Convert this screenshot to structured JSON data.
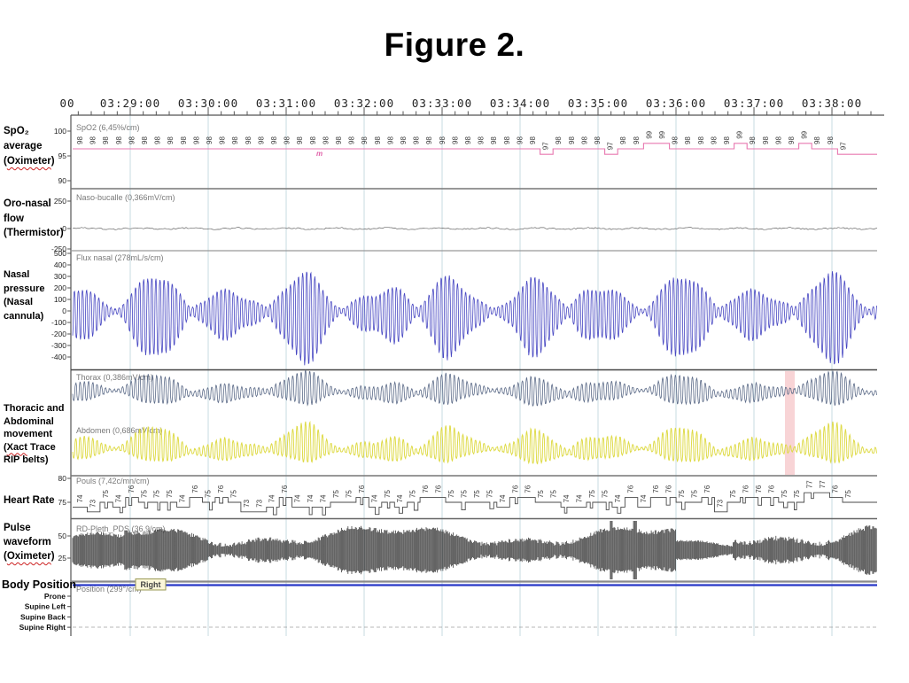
{
  "title": "Figure 2.",
  "figure": {
    "time_axis": {
      "partial_first_label": "00",
      "labels": [
        "03:29:00",
        "03:30:00",
        "03:31:00",
        "03:32:00",
        "03:33:00",
        "03:34:00",
        "03:35:00",
        "03:36:00",
        "03:37:00",
        "03:38:00"
      ],
      "minor_tick_interval_seconds": 10
    },
    "row_labels": [
      [
        "SpO₂",
        "average",
        "(Oximeter)"
      ],
      [
        "Oro-nasal",
        "flow",
        "(Thermistor)"
      ],
      [
        "Nasal",
        "pressure",
        "(Nasal",
        "cannula)"
      ],
      [
        "Thoracic and",
        "Abdominal",
        "movement",
        "(Xact Trace",
        "RIP belts)"
      ],
      [
        "Heart Rate"
      ],
      [
        "Pulse",
        "waveform",
        "(Oximeter)"
      ],
      [
        "Body Position"
      ]
    ],
    "spellcheck_wavy_words": [
      "Oximeter",
      "Xact"
    ],
    "position_scale_labels": [
      "Prone",
      "Supine Left",
      "Supine Back",
      "Supine Right"
    ],
    "body_position_value": "Right"
  },
  "chart_data": {
    "type": "multichannel-timeseries (polysomnography)",
    "x_tick_labels": [
      "03:29:00",
      "03:30:00",
      "03:31:00",
      "03:32:00",
      "03:33:00",
      "03:34:00",
      "03:35:00",
      "03:36:00",
      "03:37:00",
      "03:38:00"
    ],
    "channels": [
      {
        "id": "spo2",
        "name": "SpO2 average (Oximeter)",
        "signal_label": "SpO2 (6,45%/cm)",
        "y_ticks": [
          "100",
          "95",
          "90"
        ],
        "values_every_10s": [
          98,
          98,
          98,
          98,
          98,
          98,
          98,
          98,
          98,
          98,
          98,
          98,
          98,
          98,
          98,
          98,
          98,
          98,
          98,
          98,
          98,
          98,
          98,
          98,
          98,
          98,
          98,
          98,
          98,
          98,
          98,
          98,
          98,
          98,
          98,
          98,
          97,
          98,
          98,
          98,
          98,
          97,
          98,
          98,
          99,
          99,
          98,
          98,
          98,
          98,
          98,
          99,
          98,
          98,
          98,
          98,
          99,
          98,
          98,
          97
        ],
        "color": "#e878b0",
        "value_label_color": "#3a3a3a",
        "pattern": "step line of averaged SpO2 values, each value printed rotated above the trace"
      },
      {
        "id": "oronasal",
        "name": "Oro-nasal flow (Thermistor)",
        "signal_label": "Naso-bucalle (0,366mV/cm)",
        "y_ticks": [
          "250",
          "0",
          "-250"
        ],
        "color": "#666666",
        "pattern": "essentially flat line at 0 with minimal noise (absent thermistor flow)"
      },
      {
        "id": "nasal",
        "name": "Nasal pressure (Nasal cannula)",
        "signal_label": "Flux nasal (278mL/s/cm)",
        "y_ticks": [
          "500",
          "400",
          "300",
          "200",
          "100",
          "0",
          "-100",
          "-200",
          "-300",
          "-400"
        ],
        "color": "#4747c2",
        "pattern": "crescendo-decrescendo bursts (periodic breathing); peaks about +300 / -430, burst period about 1 minute"
      },
      {
        "id": "thorax",
        "name": "Thoracic movement (Xact Trace RIP belt)",
        "signal_label": "Thorax (0,386mV/cm)",
        "y_ticks": [],
        "color": "#5c6b88",
        "pattern": "respiratory oscillation with same waxing-waning burst envelope"
      },
      {
        "id": "abdomen",
        "name": "Abdominal movement (Xact Trace RIP belt)",
        "signal_label": "Abdomen (0,686mV/cm)",
        "y_ticks": [],
        "color": "#deda45",
        "pattern": "respiratory oscillation, upward spikes, same burst envelope"
      },
      {
        "id": "pouls",
        "name": "Heart Rate",
        "signal_label": "Pouls (7,42c/mn/cm)",
        "y_ticks": [
          "80",
          "75"
        ],
        "values_every_10s": [
          74,
          73,
          75,
          74,
          76,
          75,
          75,
          75,
          74,
          76,
          75,
          76,
          75,
          73,
          73,
          74,
          76,
          74,
          74,
          74,
          75,
          75,
          76,
          74,
          75,
          74,
          75,
          76,
          76,
          75,
          75,
          75,
          75,
          74,
          76,
          76,
          75,
          75,
          74,
          74,
          75,
          75,
          74,
          76,
          74,
          76,
          76,
          75,
          75,
          76,
          73,
          75,
          76,
          76,
          76,
          75,
          75,
          77,
          77,
          76,
          75
        ],
        "color": "#4a4a4a",
        "value_label_color": "#3a3a3a",
        "pattern": "stepped pulse-rate trace with rotated value labels"
      },
      {
        "id": "pleth",
        "name": "Pulse waveform (Oximeter)",
        "signal_label": "RD-Pleth_PDS (36,9/cm)",
        "y_ticks": [
          "50",
          "25"
        ],
        "color": "#383838",
        "pattern": "dense plethysmograph waveform, slowly varying amplitude, quiet segment near 03:36:40-03:37:20 and two tall spikes near 03:35:10"
      },
      {
        "id": "position",
        "name": "Body Position",
        "signal_label": "Position (299°/cm)",
        "value": "Right",
        "scale_labels": [
          "Prone",
          "Supine Left",
          "Supine Back",
          "Supine Right"
        ],
        "color": "#2838c8",
        "pattern": "constant blue line at 'Right' level; faint dashed baseline at Supine Right level"
      }
    ],
    "annotations": [
      {
        "type": "event-highlight",
        "channels": "Thorax/Abdomen",
        "near_time": "03:37:25",
        "color": "#f2a9ad"
      },
      {
        "type": "artifact-mark",
        "channel": "SpO2",
        "text": "m",
        "near_time": "03:31:10",
        "color": "#e060a8"
      }
    ],
    "grid": {
      "vertical_gridlines": "one per minute",
      "color": "#c7dbe2"
    },
    "legend_position": "none"
  }
}
